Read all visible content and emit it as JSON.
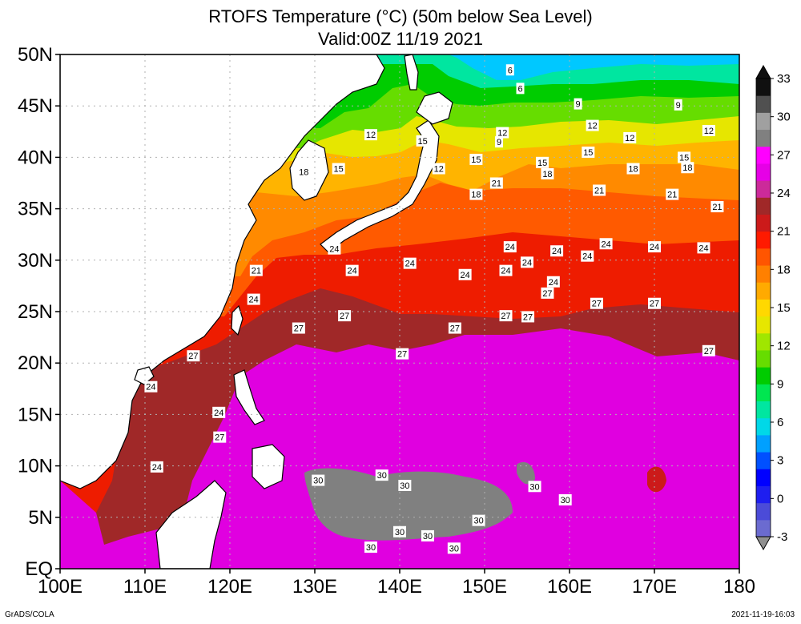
{
  "title": "RTOFS Temperature (°C) (50m below Sea Level)",
  "subtitle": "Valid:00Z 11/19 2021",
  "footer_left": "GrADS/COLA",
  "footer_right": "2021-11-19-16:03",
  "map_data": {
    "type": "map",
    "variable": "Sea temperature at 50m below sea level",
    "units": "°C",
    "lon_range": [
      100,
      180
    ],
    "lat_range": [
      0,
      50
    ],
    "lon_ticks": [
      "100E",
      "110E",
      "120E",
      "130E",
      "140E",
      "150E",
      "160E",
      "170E",
      "180"
    ],
    "lat_ticks": [
      "EQ",
      "5N",
      "10N",
      "15N",
      "20N",
      "25N",
      "30N",
      "35N",
      "40N",
      "45N",
      "50N"
    ],
    "grid": "dotted",
    "colorbar": {
      "placement": "right",
      "labels": [
        "-3",
        "0",
        "3",
        "6",
        "9",
        "12",
        "15",
        "18",
        "21",
        "24",
        "27",
        "30",
        "33"
      ],
      "colors": [
        "#6b6bd0",
        "#4b4bd8",
        "#1e1ef0",
        "#0000ff",
        "#0050ff",
        "#00a0ff",
        "#00d8e8",
        "#00e6a0",
        "#00e650",
        "#00cc00",
        "#66dd00",
        "#a0e600",
        "#e6e600",
        "#ffd800",
        "#ffaa00",
        "#ff8000",
        "#ff5500",
        "#ff1a00",
        "#cc1a1a",
        "#a02828",
        "#cc2a9a",
        "#e600e6",
        "#ff00ff",
        "#808080",
        "#a0a0a0",
        "#505050",
        "#101010"
      ]
    },
    "contour_labels": [
      {
        "text": "6",
        "lon": 153,
        "lat": 48.5
      },
      {
        "text": "6",
        "lon": 154.2,
        "lat": 46.7
      },
      {
        "text": "9",
        "lon": 161.0,
        "lat": 45.2
      },
      {
        "text": "9",
        "lon": 172.8,
        "lat": 45.1
      },
      {
        "text": "9",
        "lon": 151.7,
        "lat": 41.5
      },
      {
        "text": "12",
        "lon": 136.6,
        "lat": 42.2
      },
      {
        "text": "12",
        "lon": 162.7,
        "lat": 43.1
      },
      {
        "text": "12",
        "lon": 152.1,
        "lat": 42.4
      },
      {
        "text": "12",
        "lon": 167.1,
        "lat": 41.9
      },
      {
        "text": "12",
        "lon": 176.4,
        "lat": 42.6
      },
      {
        "text": "12",
        "lon": 144.6,
        "lat": 38.9
      },
      {
        "text": "15",
        "lon": 142.7,
        "lat": 41.6
      },
      {
        "text": "15",
        "lon": 132.8,
        "lat": 38.9
      },
      {
        "text": "15",
        "lon": 149.0,
        "lat": 39.8
      },
      {
        "text": "15",
        "lon": 162.2,
        "lat": 40.5
      },
      {
        "text": "15",
        "lon": 156.8,
        "lat": 39.5
      },
      {
        "text": "15",
        "lon": 173.5,
        "lat": 40.0
      },
      {
        "text": "18",
        "lon": 128.7,
        "lat": 38.6
      },
      {
        "text": "18",
        "lon": 157.4,
        "lat": 38.4
      },
      {
        "text": "18",
        "lon": 167.5,
        "lat": 38.9
      },
      {
        "text": "18",
        "lon": 173.9,
        "lat": 39.0
      },
      {
        "text": "18",
        "lon": 149.0,
        "lat": 36.4
      },
      {
        "text": "21",
        "lon": 151.4,
        "lat": 37.5
      },
      {
        "text": "21",
        "lon": 163.5,
        "lat": 36.8
      },
      {
        "text": "21",
        "lon": 172.1,
        "lat": 36.4
      },
      {
        "text": "21",
        "lon": 177.4,
        "lat": 35.2
      },
      {
        "text": "21",
        "lon": 123.1,
        "lat": 29.0
      },
      {
        "text": "24",
        "lon": 132.3,
        "lat": 31.1
      },
      {
        "text": "24",
        "lon": 134.4,
        "lat": 29.0
      },
      {
        "text": "24",
        "lon": 141.2,
        "lat": 29.7
      },
      {
        "text": "24",
        "lon": 153.0,
        "lat": 31.3
      },
      {
        "text": "24",
        "lon": 158.5,
        "lat": 30.9
      },
      {
        "text": "24",
        "lon": 164.3,
        "lat": 31.6
      },
      {
        "text": "24",
        "lon": 170.0,
        "lat": 31.3
      },
      {
        "text": "24",
        "lon": 175.8,
        "lat": 31.2
      },
      {
        "text": "24",
        "lon": 162.1,
        "lat": 30.4
      },
      {
        "text": "24",
        "lon": 155.0,
        "lat": 29.8
      },
      {
        "text": "24",
        "lon": 152.5,
        "lat": 29.0
      },
      {
        "text": "24",
        "lon": 147.7,
        "lat": 28.6
      },
      {
        "text": "24",
        "lon": 158.1,
        "lat": 27.9
      },
      {
        "text": "24",
        "lon": 122.8,
        "lat": 26.2
      },
      {
        "text": "24",
        "lon": 110.7,
        "lat": 17.7
      },
      {
        "text": "24",
        "lon": 118.7,
        "lat": 15.2
      },
      {
        "text": "24",
        "lon": 111.4,
        "lat": 9.9
      },
      {
        "text": "27",
        "lon": 157.4,
        "lat": 26.8
      },
      {
        "text": "27",
        "lon": 163.2,
        "lat": 25.8
      },
      {
        "text": "27",
        "lon": 170.0,
        "lat": 25.8
      },
      {
        "text": "27",
        "lon": 152.5,
        "lat": 24.6
      },
      {
        "text": "27",
        "lon": 155.1,
        "lat": 24.5
      },
      {
        "text": "27",
        "lon": 133.5,
        "lat": 24.6
      },
      {
        "text": "27",
        "lon": 128.1,
        "lat": 23.4
      },
      {
        "text": "27",
        "lon": 146.5,
        "lat": 23.4
      },
      {
        "text": "27",
        "lon": 140.3,
        "lat": 20.9
      },
      {
        "text": "27",
        "lon": 176.4,
        "lat": 21.2
      },
      {
        "text": "27",
        "lon": 115.7,
        "lat": 20.7
      },
      {
        "text": "27",
        "lon": 118.8,
        "lat": 12.8
      },
      {
        "text": "30",
        "lon": 137.9,
        "lat": 9.1
      },
      {
        "text": "30",
        "lon": 130.4,
        "lat": 8.6
      },
      {
        "text": "30",
        "lon": 140.6,
        "lat": 8.1
      },
      {
        "text": "30",
        "lon": 155.9,
        "lat": 8.0
      },
      {
        "text": "30",
        "lon": 159.5,
        "lat": 6.7
      },
      {
        "text": "30",
        "lon": 149.3,
        "lat": 4.7
      },
      {
        "text": "30",
        "lon": 140.0,
        "lat": 3.6
      },
      {
        "text": "30",
        "lon": 143.3,
        "lat": 3.2
      },
      {
        "text": "30",
        "lon": 136.6,
        "lat": 2.1
      },
      {
        "text": "30",
        "lon": 146.4,
        "lat": 2.0
      }
    ]
  }
}
